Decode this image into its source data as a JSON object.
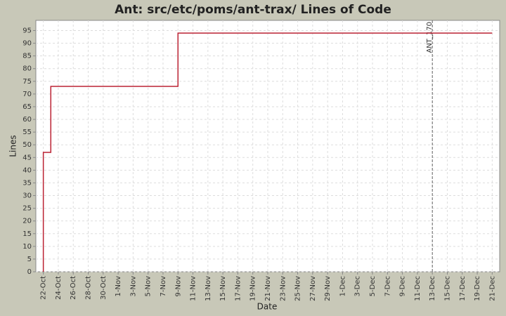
{
  "chart_data": {
    "type": "line",
    "title": "Ant: src/etc/poms/ant-trax/ Lines of Code",
    "x_label": "Date",
    "y_label": "Lines",
    "x": [
      "22-Oct",
      "22-Oct",
      "23-Oct",
      "23-Oct",
      "9-Nov",
      "9-Nov",
      "21-Dec"
    ],
    "series": [
      {
        "color": "#bb2233",
        "values": [
          0,
          47,
          47,
          73,
          73,
          94,
          94
        ]
      }
    ],
    "xlim": [
      "21-Oct",
      "22-Dec"
    ],
    "xticks": [
      "22-Oct",
      "24-Oct",
      "26-Oct",
      "28-Oct",
      "30-Oct",
      "1-Nov",
      "3-Nov",
      "5-Nov",
      "7-Nov",
      "9-Nov",
      "11-Nov",
      "13-Nov",
      "15-Nov",
      "17-Nov",
      "19-Nov",
      "21-Nov",
      "23-Nov",
      "25-Nov",
      "27-Nov",
      "29-Nov",
      "1-Dec",
      "3-Dec",
      "5-Dec",
      "7-Dec",
      "9-Dec",
      "11-Dec",
      "13-Dec",
      "15-Dec",
      "17-Dec",
      "19-Dec",
      "21-Dec"
    ],
    "ylim": [
      0,
      99
    ],
    "yticks": [
      0,
      5,
      10,
      15,
      20,
      25,
      30,
      35,
      40,
      45,
      50,
      55,
      60,
      65,
      70,
      75,
      80,
      85,
      90,
      95
    ],
    "grid": true,
    "annotations": [
      {
        "label": "ANT_170",
        "x": "13-Dec"
      }
    ]
  }
}
